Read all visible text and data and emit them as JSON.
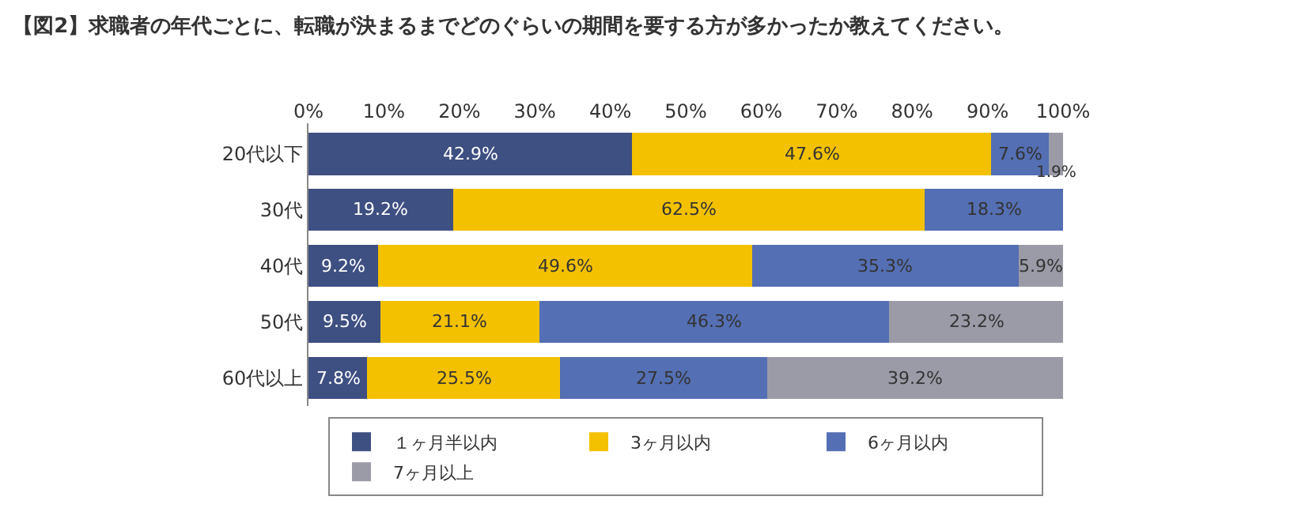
{
  "chart_data": {
    "type": "bar",
    "orientation": "horizontal",
    "stacked": true,
    "title": "【図2】求職者の年代ごとに、転職が決まるまでどのぐらいの期間を要する方が多かったか教えてください。",
    "categories": [
      "20代以下",
      "30代",
      "40代",
      "50代",
      "60代以上"
    ],
    "xlim": [
      0,
      100
    ],
    "xticks": [
      {
        "value": 0,
        "label": "0%"
      },
      {
        "value": 10,
        "label": "10%"
      },
      {
        "value": 20,
        "label": "20%"
      },
      {
        "value": 30,
        "label": "30%"
      },
      {
        "value": 40,
        "label": "40%"
      },
      {
        "value": 50,
        "label": "50%"
      },
      {
        "value": 60,
        "label": "60%"
      },
      {
        "value": 70,
        "label": "70%"
      },
      {
        "value": 80,
        "label": "80%"
      },
      {
        "value": 90,
        "label": "90%"
      },
      {
        "value": 100,
        "label": "100%"
      }
    ],
    "series": [
      {
        "name": "１ヶ月半以内",
        "color": "#3e4f82",
        "values": [
          42.9,
          19.2,
          9.2,
          9.5,
          7.8
        ],
        "value_labels": [
          "42.9%",
          "19.2%",
          "9.2%",
          "9.5%",
          "7.8%"
        ]
      },
      {
        "name": "3ヶ月以内",
        "color": "#f4c100",
        "values": [
          47.6,
          62.5,
          49.6,
          21.1,
          25.5
        ],
        "value_labels": [
          "47.6%",
          "62.5%",
          "49.6%",
          "21.1%",
          "25.5%"
        ]
      },
      {
        "name": "6ヶ月以内",
        "color": "#546fb3",
        "values": [
          7.6,
          18.3,
          35.3,
          46.3,
          27.5
        ],
        "value_labels": [
          "7.6%",
          "18.3%",
          "35.3%",
          "46.3%",
          "27.5%"
        ]
      },
      {
        "name": "7ヶ月以上",
        "color": "#9b9ba8",
        "values": [
          1.9,
          null,
          5.9,
          23.2,
          39.2
        ],
        "value_labels": [
          "1.9%",
          null,
          "5.9%",
          "23.2%",
          "39.2%"
        ]
      }
    ],
    "legend": "bottom"
  }
}
